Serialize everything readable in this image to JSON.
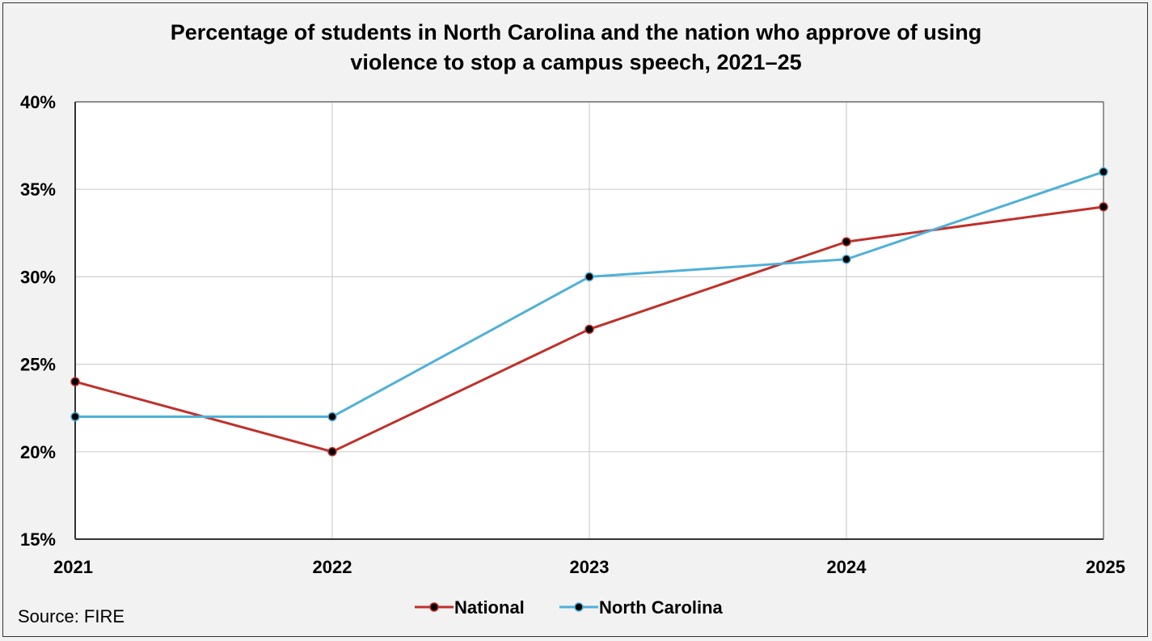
{
  "chart_data": {
    "type": "line",
    "title_lines": [
      "Percentage of students in North Carolina and the nation who approve of using",
      "violence to stop a campus speech, 2021–25"
    ],
    "categories": [
      "2021",
      "2022",
      "2023",
      "2024",
      "2025"
    ],
    "series": [
      {
        "name": "National",
        "color": "#c0302a",
        "values": [
          24,
          20,
          27,
          32,
          34
        ]
      },
      {
        "name": "North Carolina",
        "color": "#4fb0d8",
        "values": [
          22,
          22,
          30,
          31,
          36
        ]
      }
    ],
    "ylim": [
      15,
      40
    ],
    "yticks": [
      15,
      20,
      25,
      30,
      35,
      40
    ],
    "ytick_labels": [
      "15%",
      "20%",
      "25%",
      "30%",
      "35%",
      "40%"
    ],
    "grid": true,
    "legend_position": "bottom-center",
    "marker_color": "#000000"
  },
  "source": "Source: FIRE"
}
